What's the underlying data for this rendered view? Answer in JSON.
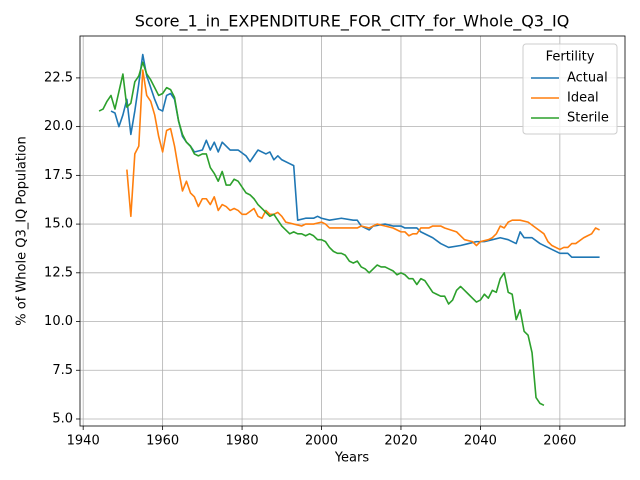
{
  "chart_data": {
    "type": "line",
    "title": "Score_1_in_EXPENDITURE_FOR_CITY_for_Whole_Q3_IQ",
    "xlabel": "Years",
    "ylabel": "% of Whole Q3_IQ Population",
    "xlim": [
      1939.2,
      2076.4
    ],
    "ylim": [
      4.64,
      24.65
    ],
    "xticks": [
      1940,
      1960,
      1980,
      2000,
      2020,
      2040,
      2060
    ],
    "yticks": [
      {
        "value": 5,
        "label": "5.0"
      },
      7.5,
      {
        "value": 10,
        "label": "10.0"
      },
      12.5,
      {
        "value": 15,
        "label": "15.0"
      },
      17.5,
      {
        "value": 20,
        "label": "20.0"
      },
      22.5
    ],
    "grid": true,
    "legend_title": "Fertility",
    "legend_position": "upper right",
    "series": [
      {
        "name": "Actual",
        "color": "#1f77b4",
        "x": [
          1947,
          1948,
          1949,
          1950,
          1951,
          1952,
          1953,
          1954,
          1955,
          1956,
          1957,
          1958,
          1959,
          1960,
          1961,
          1962,
          1963,
          1964,
          1965,
          1966,
          1967,
          1968,
          1970,
          1971,
          1972,
          1973,
          1974,
          1975,
          1977,
          1979,
          1981,
          1982,
          1983,
          1984,
          1986,
          1987,
          1988,
          1989,
          1990,
          1992,
          1993,
          1994,
          1996,
          1998,
          1999,
          2000,
          2002,
          2005,
          2008,
          2009,
          2010,
          2012,
          2013,
          2016,
          2018,
          2020,
          2021,
          2022,
          2024,
          2025,
          2028,
          2030,
          2032,
          2035,
          2037,
          2039,
          2041,
          2043,
          2045,
          2047,
          2049,
          2050,
          2051,
          2053,
          2055,
          2058,
          2060,
          2062,
          2063,
          2065,
          2067,
          2070
        ],
        "values": [
          20.8,
          20.7,
          20.0,
          20.6,
          21.4,
          19.6,
          20.8,
          22.2,
          23.7,
          22.6,
          22.0,
          21.4,
          20.9,
          20.8,
          21.6,
          21.7,
          21.4,
          20.3,
          19.5,
          19.2,
          19.0,
          18.7,
          18.8,
          19.3,
          18.8,
          19.2,
          18.7,
          19.2,
          18.8,
          18.8,
          18.5,
          18.2,
          18.5,
          18.8,
          18.6,
          18.7,
          18.3,
          18.5,
          18.3,
          18.1,
          18.0,
          15.2,
          15.3,
          15.3,
          15.4,
          15.3,
          15.2,
          15.3,
          15.2,
          15.2,
          14.9,
          14.7,
          14.9,
          15.0,
          14.9,
          14.9,
          14.8,
          14.8,
          14.8,
          14.6,
          14.3,
          14.0,
          13.8,
          13.9,
          14.0,
          14.1,
          14.1,
          14.2,
          14.3,
          14.2,
          14.0,
          14.6,
          14.3,
          14.3,
          14.0,
          13.7,
          13.5,
          13.5,
          13.3,
          13.3,
          13.3,
          13.3
        ]
      },
      {
        "name": "Ideal",
        "color": "#ff7f0e",
        "x": [
          1951,
          1952,
          1953,
          1954,
          1955,
          1956,
          1957,
          1958,
          1959,
          1960,
          1961,
          1962,
          1963,
          1964,
          1965,
          1966,
          1967,
          1968,
          1969,
          1970,
          1971,
          1972,
          1973,
          1974,
          1975,
          1976,
          1977,
          1978,
          1979,
          1980,
          1981,
          1983,
          1984,
          1985,
          1986,
          1987,
          1988,
          1989,
          1990,
          1991,
          1993,
          1995,
          1996,
          1998,
          2000,
          2001,
          2002,
          2004,
          2006,
          2009,
          2010,
          2012,
          2014,
          2016,
          2018,
          2020,
          2021,
          2022,
          2023,
          2024,
          2025,
          2027,
          2028,
          2030,
          2031,
          2034,
          2035,
          2036,
          2038,
          2039,
          2040,
          2042,
          2043,
          2044,
          2045,
          2046,
          2047,
          2048,
          2050,
          2052,
          2054,
          2056,
          2057,
          2058,
          2060,
          2061,
          2062,
          2063,
          2064,
          2066,
          2067,
          2068,
          2069,
          2070
        ],
        "values": [
          17.8,
          15.4,
          18.6,
          19.0,
          22.9,
          21.6,
          21.3,
          20.6,
          19.5,
          18.7,
          19.8,
          19.9,
          19.0,
          17.8,
          16.7,
          17.2,
          16.6,
          16.4,
          15.9,
          16.3,
          16.3,
          16.0,
          16.4,
          15.7,
          16.0,
          15.9,
          15.7,
          15.8,
          15.7,
          15.5,
          15.5,
          15.8,
          15.4,
          15.3,
          15.7,
          15.5,
          15.5,
          15.6,
          15.4,
          15.1,
          15.0,
          14.9,
          15.0,
          15.0,
          15.1,
          15.0,
          14.8,
          14.8,
          14.8,
          14.8,
          14.9,
          14.8,
          15.0,
          14.9,
          14.8,
          14.6,
          14.6,
          14.4,
          14.5,
          14.5,
          14.8,
          14.8,
          14.9,
          14.9,
          14.8,
          14.6,
          14.4,
          14.2,
          14.1,
          13.9,
          14.1,
          14.2,
          14.3,
          14.5,
          14.9,
          14.8,
          15.1,
          15.2,
          15.2,
          15.1,
          14.8,
          14.5,
          14.1,
          13.9,
          13.7,
          13.8,
          13.8,
          14.0,
          14.0,
          14.3,
          14.4,
          14.5,
          14.8,
          14.7
        ]
      },
      {
        "name": "Sterile",
        "color": "#2ca02c",
        "x": [
          1944,
          1945,
          1946,
          1947,
          1948,
          1949,
          1950,
          1951,
          1952,
          1953,
          1954,
          1955,
          1956,
          1957,
          1958,
          1959,
          1960,
          1961,
          1962,
          1963,
          1964,
          1965,
          1966,
          1967,
          1968,
          1969,
          1970,
          1971,
          1972,
          1973,
          1974,
          1975,
          1976,
          1977,
          1978,
          1979,
          1980,
          1981,
          1982,
          1983,
          1984,
          1985,
          1986,
          1987,
          1988,
          1989,
          1990,
          1991,
          1992,
          1993,
          1994,
          1995,
          1996,
          1997,
          1998,
          1999,
          2000,
          2001,
          2002,
          2003,
          2004,
          2005,
          2006,
          2007,
          2008,
          2009,
          2010,
          2011,
          2012,
          2013,
          2014,
          2015,
          2016,
          2017,
          2018,
          2019,
          2020,
          2021,
          2022,
          2023,
          2024,
          2025,
          2026,
          2027,
          2028,
          2029,
          2030,
          2031,
          2032,
          2033,
          2034,
          2035,
          2036,
          2037,
          2038,
          2039,
          2040,
          2041,
          2042,
          2043,
          2044,
          2045,
          2046,
          2047,
          2048,
          2049,
          2050,
          2051,
          2052,
          2053,
          2054,
          2055,
          2056
        ],
        "values": [
          20.8,
          20.9,
          21.3,
          21.6,
          20.9,
          21.8,
          22.7,
          21.0,
          21.2,
          22.3,
          22.6,
          23.3,
          22.7,
          22.4,
          22.0,
          21.6,
          21.7,
          22.0,
          21.9,
          21.5,
          20.3,
          19.6,
          19.2,
          19.0,
          18.6,
          18.5,
          18.6,
          18.6,
          17.9,
          17.6,
          17.2,
          17.7,
          17.0,
          17.0,
          17.3,
          17.2,
          16.9,
          16.6,
          16.5,
          16.3,
          16.0,
          15.8,
          15.6,
          15.4,
          15.5,
          15.2,
          14.9,
          14.7,
          14.5,
          14.6,
          14.5,
          14.5,
          14.4,
          14.5,
          14.4,
          14.2,
          14.2,
          14.1,
          13.8,
          13.6,
          13.5,
          13.5,
          13.4,
          13.1,
          13.0,
          13.1,
          12.8,
          12.7,
          12.5,
          12.7,
          12.9,
          12.8,
          12.8,
          12.7,
          12.6,
          12.4,
          12.5,
          12.4,
          12.2,
          12.2,
          11.9,
          12.2,
          12.1,
          11.8,
          11.5,
          11.4,
          11.3,
          11.3,
          10.9,
          11.1,
          11.6,
          11.8,
          11.6,
          11.4,
          11.2,
          11.0,
          11.1,
          11.4,
          11.2,
          11.6,
          11.5,
          12.2,
          12.5,
          11.5,
          11.4,
          10.1,
          10.6,
          9.5,
          9.3,
          8.4,
          6.1,
          5.8,
          5.7
        ]
      }
    ]
  }
}
